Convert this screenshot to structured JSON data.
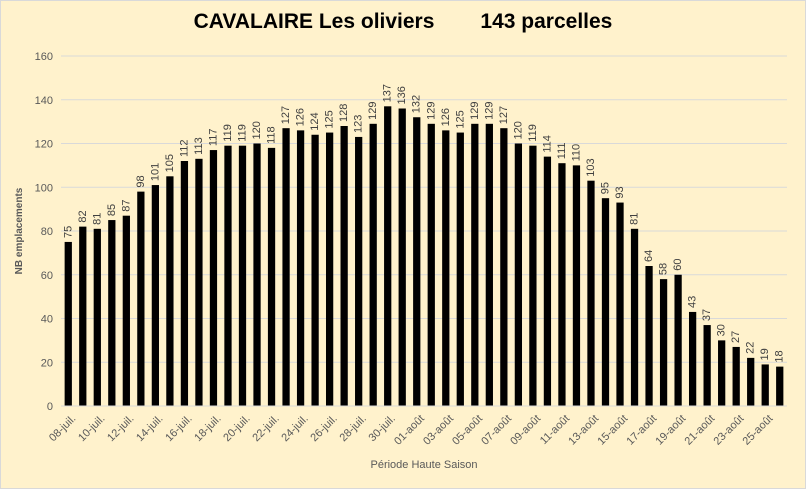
{
  "chart_data": {
    "type": "bar",
    "title": "CAVALAIRE Les oliviers",
    "subtitle": "143 parcelles",
    "xlabel": "Période Haute Saison",
    "ylabel": "NB emplacements",
    "ylim": [
      0,
      160
    ],
    "yticks": [
      0,
      20,
      40,
      60,
      80,
      100,
      120,
      140,
      160
    ],
    "grid": "horizontal",
    "legend": "none",
    "bar_color": "#000000",
    "background_color": "#fff2cc",
    "gridline_color": "#d9d9d9",
    "categories": [
      "08-juil.",
      "09-juil.",
      "10-juil.",
      "11-juil.",
      "12-juil.",
      "13-juil.",
      "14-juil.",
      "15-juil.",
      "16-juil.",
      "17-juil.",
      "18-juil.",
      "19-juil.",
      "20-juil.",
      "21-juil.",
      "22-juil.",
      "23-juil.",
      "24-juil.",
      "25-juil.",
      "26-juil.",
      "27-juil.",
      "28-juil.",
      "29-juil.",
      "30-juil.",
      "31-juil.",
      "01-août",
      "02-août",
      "03-août",
      "04-août",
      "05-août",
      "06-août",
      "07-août",
      "08-août",
      "09-août",
      "10-août",
      "11-août",
      "12-août",
      "13-août",
      "14-août",
      "15-août",
      "16-août",
      "17-août",
      "18-août",
      "19-août",
      "20-août",
      "21-août",
      "22-août",
      "23-août",
      "24-août",
      "25-août",
      "26-août"
    ],
    "tick_labels_shown": [
      "08-juil.",
      "10-juil.",
      "12-juil.",
      "14-juil.",
      "16-juil.",
      "18-juil.",
      "20-juil.",
      "22-juil.",
      "24-juil.",
      "26-juil.",
      "28-juil.",
      "30-juil.",
      "01-août",
      "03-août",
      "05-août",
      "07-août",
      "09-août",
      "11-août",
      "13-août",
      "15-août",
      "17-août",
      "19-août",
      "21-août",
      "23-août",
      "25-août"
    ],
    "values": [
      75,
      82,
      81,
      85,
      87,
      98,
      101,
      105,
      112,
      113,
      117,
      119,
      119,
      120,
      118,
      127,
      126,
      124,
      125,
      128,
      123,
      129,
      137,
      136,
      132,
      129,
      126,
      125,
      129,
      129,
      127,
      120,
      119,
      114,
      111,
      110,
      103,
      95,
      93,
      81,
      64,
      58,
      60,
      43,
      37,
      30,
      27,
      22,
      19,
      18
    ]
  }
}
